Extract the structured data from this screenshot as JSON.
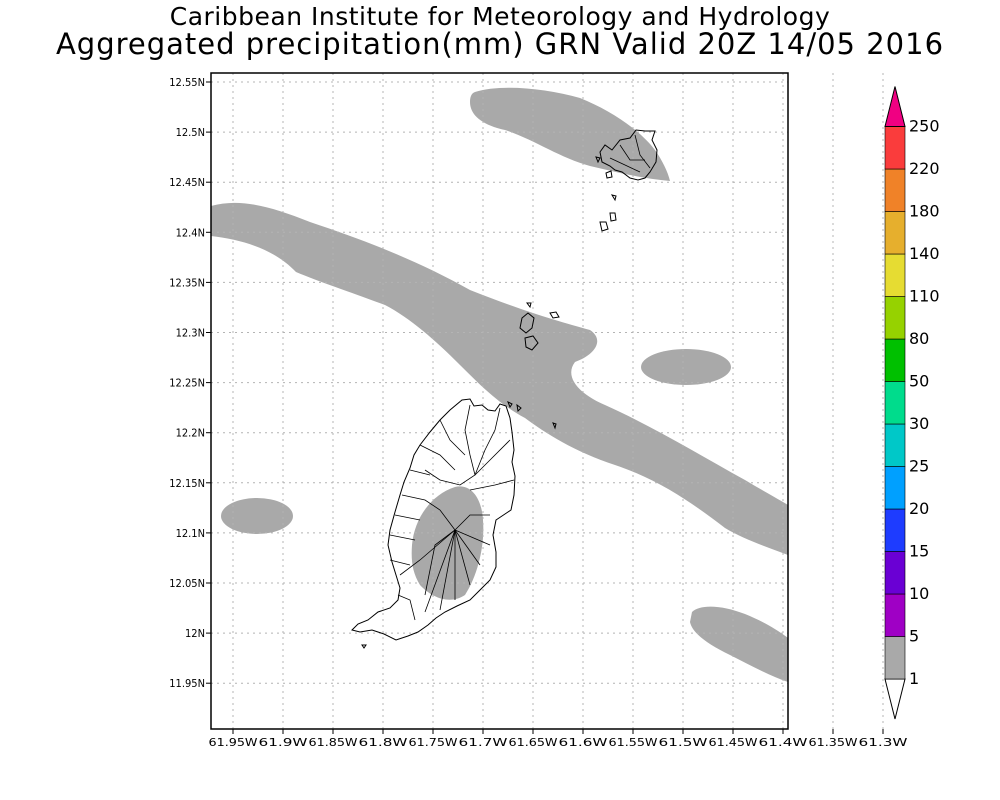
{
  "title": "Caribbean Institute for Meteorology and Hydrology",
  "subtitle": "Aggregated precipitation(mm) GRN Valid 20Z 14/05 2016",
  "map": {
    "lat_labels": [
      "12.55N",
      "12.5N",
      "12.45N",
      "12.4N",
      "12.35N",
      "12.3N",
      "12.25N",
      "12.2N",
      "12.15N",
      "12.1N",
      "12.05N",
      "12N",
      "11.95N"
    ],
    "lon_labels": [
      "61.95W",
      "61.9W",
      "61.85W",
      "61.8W",
      "61.75W",
      "61.7W",
      "61.65W",
      "61.6W",
      "61.55W",
      "61.5W",
      "61.45W",
      "61.4W",
      "61.35W",
      "61.3W"
    ],
    "precip_fill_color": "#a9a9a9",
    "grid": true
  },
  "colorbar": {
    "labels": [
      "1",
      "5",
      "10",
      "15",
      "20",
      "25",
      "30",
      "50",
      "80",
      "110",
      "140",
      "180",
      "220",
      "250"
    ],
    "colors": [
      "#ffffff",
      "#a9a9a9",
      "#9f00c5",
      "#6a00d4",
      "#1e3cff",
      "#00a0ff",
      "#00c8c8",
      "#00dc8c",
      "#00c000",
      "#96d200",
      "#e6dc32",
      "#e6af2d",
      "#f08228",
      "#fa3c3c",
      "#f00082"
    ]
  }
}
